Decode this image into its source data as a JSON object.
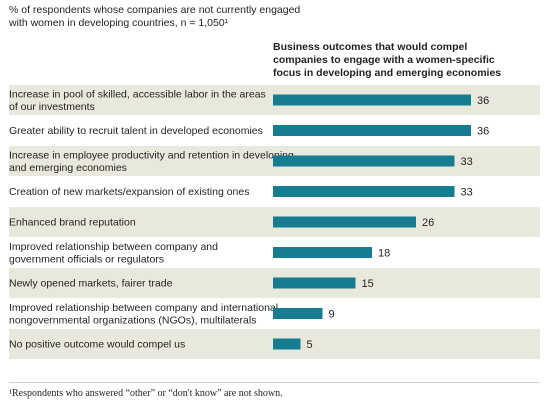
{
  "subtitle": "% of respondents whose companies are not currently engaged\nwith women in developing countries, n = 1,050¹",
  "column_heading": "Business outcomes that would compel\ncompanies to engage with a women-specific\nfocus in developing and emerging economies",
  "footnote": "¹Respondents who answered “other” or “don't know” are not shown.",
  "colors": {
    "bar": "#157d8f",
    "band": "#e8e8dc",
    "text": "#231f20"
  },
  "chart_data": {
    "type": "bar",
    "orientation": "horizontal",
    "categories": [
      [
        "Increase in pool of skilled, accessible labor in the areas",
        "of our investments"
      ],
      [
        "Greater ability to recruit talent in developed economies"
      ],
      [
        "Increase in employee productivity and retention in developing",
        "and emerging economies"
      ],
      [
        "Creation of new markets/expansion of existing ones"
      ],
      [
        "Enhanced brand reputation"
      ],
      [
        "Improved relationship between company and",
        "government officials or regulators"
      ],
      [
        "Newly opened markets, fairer trade"
      ],
      [
        "Improved relationship between company and international",
        "nongovernmental organizations (NGOs), multilaterals"
      ],
      [
        "No positive outcome would compel us"
      ]
    ],
    "values": [
      36,
      36,
      33,
      33,
      26,
      18,
      15,
      9,
      5
    ],
    "unit": "%"
  }
}
